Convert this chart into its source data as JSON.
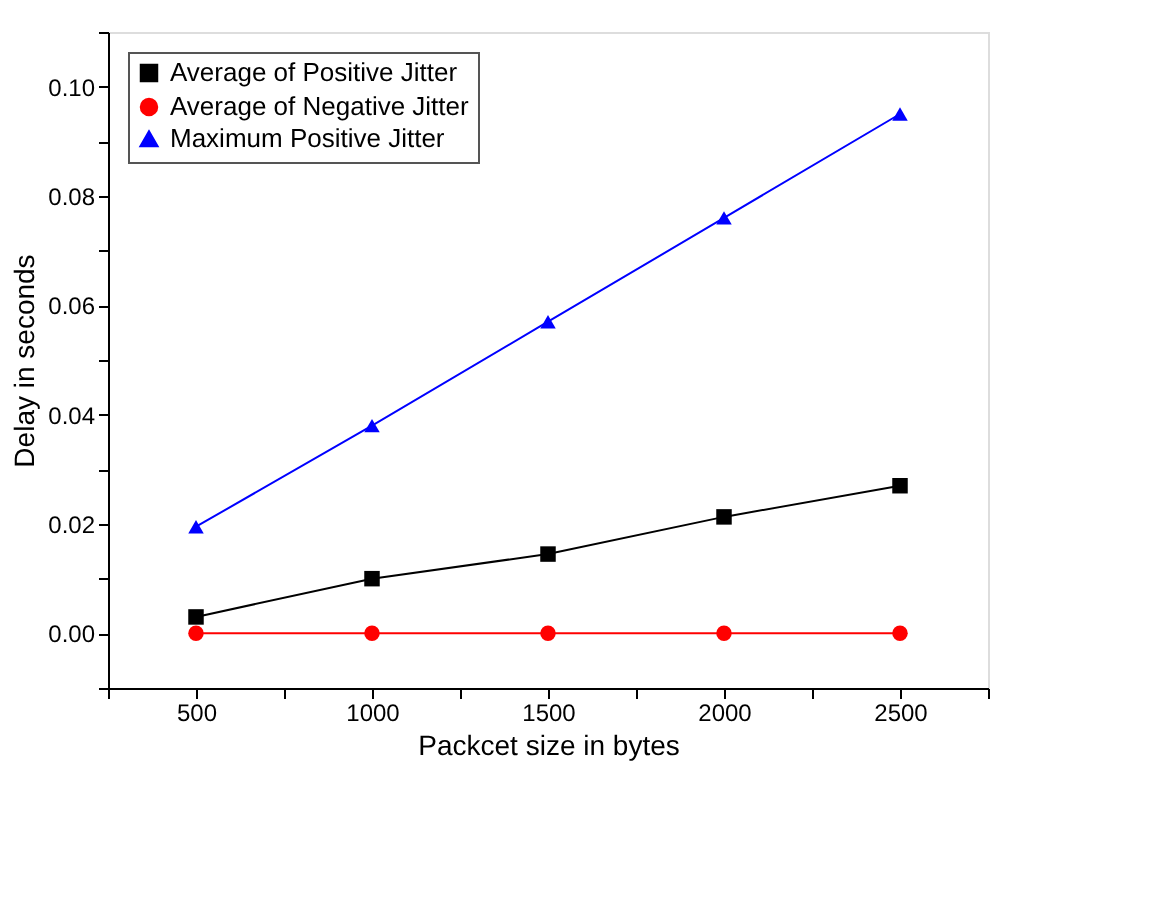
{
  "chart_data": {
    "type": "line",
    "xlabel": "Packcet size in bytes",
    "ylabel": "Delay in seconds",
    "x": [
      500,
      1000,
      1500,
      2000,
      2500
    ],
    "series": [
      {
        "name": "Average of Positive Jitter",
        "color": "#000000",
        "marker": "square",
        "values": [
          0.003,
          0.01,
          0.0145,
          0.0213,
          0.027
        ]
      },
      {
        "name": "Average of Negative Jitter",
        "color": "#ff0000",
        "marker": "circle",
        "values": [
          0,
          0,
          0,
          0,
          0
        ]
      },
      {
        "name": "Maximum Positive Jitter",
        "color": "#0000ff",
        "marker": "triangle",
        "values": [
          0.0195,
          0.038,
          0.057,
          0.076,
          0.095
        ]
      }
    ],
    "xlim": [
      250,
      2750
    ],
    "xticks": [
      {
        "value": 250,
        "label": null
      },
      500,
      {
        "value": 750,
        "label": null
      },
      1000,
      {
        "value": 1250,
        "label": null
      },
      1500,
      {
        "value": 1750,
        "label": null
      },
      2000,
      {
        "value": 2250,
        "label": null
      },
      2500,
      {
        "value": 2750,
        "label": null
      }
    ],
    "ylim": [
      -0.01,
      0.11
    ],
    "yticks": [
      {
        "value": -0.01,
        "label": null
      },
      {
        "value": 0,
        "label": "0.00"
      },
      {
        "value": 0.01,
        "label": null
      },
      {
        "value": 0.02,
        "label": "0.02"
      },
      {
        "value": 0.03,
        "label": null
      },
      {
        "value": 0.04,
        "label": "0.04"
      },
      {
        "value": 0.05,
        "label": null
      },
      {
        "value": 0.06,
        "label": "0.06"
      },
      {
        "value": 0.07,
        "label": null
      },
      {
        "value": 0.08,
        "label": "0.08"
      },
      {
        "value": 0.09,
        "label": null
      },
      {
        "value": 0.1,
        "label": "0.10"
      },
      {
        "value": 0.11,
        "label": null
      }
    ],
    "grid": false,
    "legend": "top left",
    "line_style": "solid"
  }
}
